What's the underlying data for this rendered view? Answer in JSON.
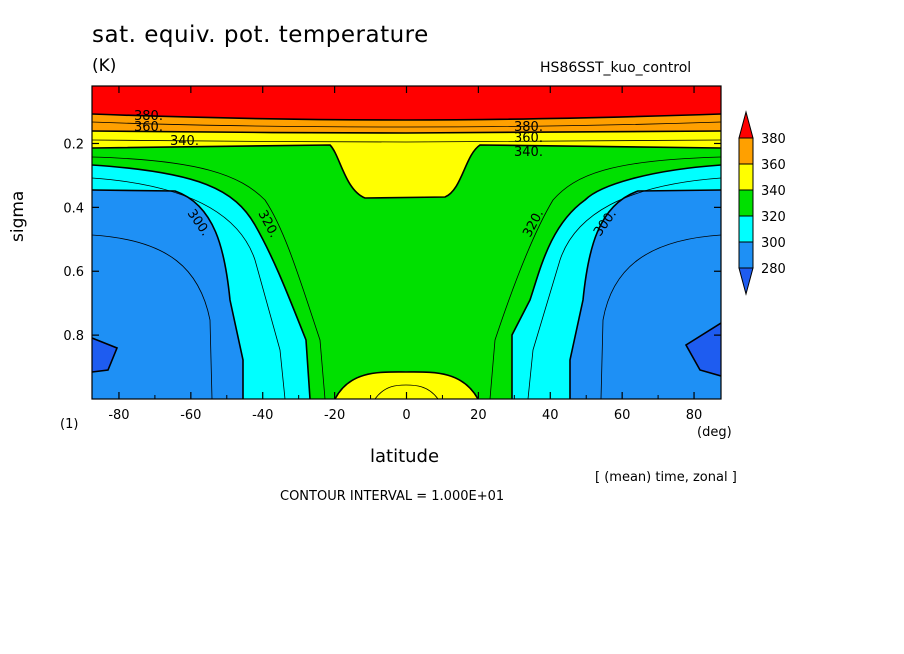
{
  "header": {
    "title": "sat. equiv. pot. temperature",
    "units": "(K)",
    "run_name": "HS86SST_kuo_control"
  },
  "footer": {
    "x_units": "(deg)",
    "scale_note": "(1)",
    "mean_note": "[ (mean) time, zonal ]",
    "contour_interval": "CONTOUR INTERVAL = 1.000E+01"
  },
  "colors": {
    "below_280": "#1e5cf0",
    "280_300": "#1e90f5",
    "300_320": "#00ffff",
    "320_340": "#00e000",
    "340_360": "#ffff00",
    "360_380": "#ffa000",
    "above_380": "#ff0000"
  },
  "chart_data": {
    "type": "filled-contour",
    "xlabel": "latitude",
    "ylabel": "sigma",
    "xlim": [
      -87.5,
      87.5
    ],
    "ylim": [
      1.0,
      0.02
    ],
    "x_ticks": [
      "-80",
      "-60",
      "-40",
      "-20",
      "0",
      "20",
      "40",
      "60",
      "80"
    ],
    "y_ticks": [
      "0.2",
      "0.4",
      "0.6",
      "0.8"
    ],
    "colorbar": {
      "levels": [
        "380",
        "360",
        "340",
        "320",
        "300",
        "280"
      ],
      "extend": "both"
    },
    "contour_labels": [
      "380.",
      "360.",
      "380.",
      "360.",
      "340.",
      "340.",
      "320.",
      "320.",
      "300.",
      "300."
    ]
  }
}
